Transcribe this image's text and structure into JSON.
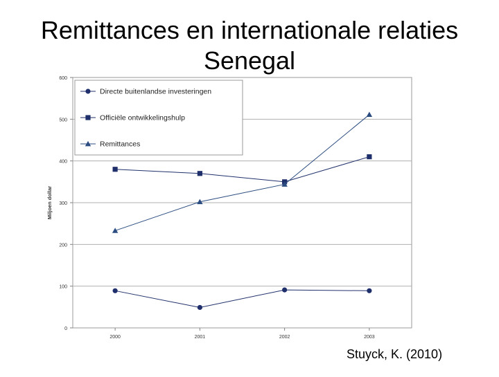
{
  "slide": {
    "title_line1": "Remittances en internationale relaties",
    "title_line2": "Senegal",
    "citation": "Stuyck, K. (2010)"
  },
  "chart_data": {
    "type": "line",
    "title": "",
    "xlabel": "",
    "ylabel": "Miljoen dollar",
    "x": [
      "2000",
      "2001",
      "2002",
      "2003"
    ],
    "ylim": [
      0,
      600
    ],
    "yticks": [
      0,
      100,
      200,
      300,
      400,
      500,
      600
    ],
    "grid": true,
    "legend_position": "top-left",
    "series": [
      {
        "name": "Directe buitenlandse investeringen",
        "marker": "circle",
        "color": "#1f2f6b",
        "values": [
          89,
          49,
          91,
          89
        ]
      },
      {
        "name": "Officiële ontwikkelingshulp",
        "marker": "square",
        "color": "#1f2f6b",
        "values": [
          380,
          370,
          350,
          410
        ]
      },
      {
        "name": "Remittances",
        "marker": "triangle",
        "color": "#2b4c80",
        "values": [
          233,
          302,
          344,
          511
        ]
      }
    ]
  }
}
